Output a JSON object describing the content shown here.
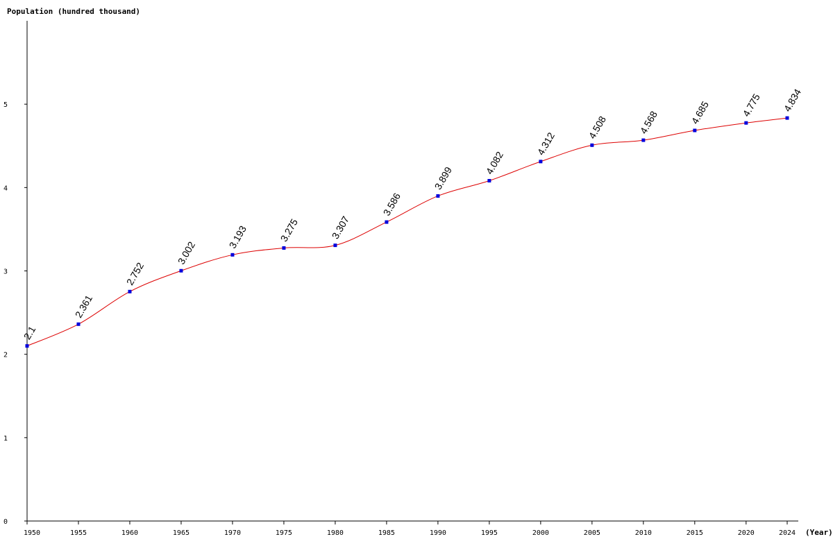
{
  "chart_data": {
    "type": "line",
    "title": "",
    "ylabel": "Population (hundred thousand)",
    "xlabel": "(Year)",
    "x": [
      1950,
      1955,
      1960,
      1965,
      1970,
      1975,
      1980,
      1985,
      1990,
      1995,
      2000,
      2005,
      2010,
      2015,
      2020,
      2024
    ],
    "x_tick_labels": [
      "1950",
      "1955",
      "1960",
      "1965",
      "1970",
      "1975",
      "1980",
      "1985",
      "1990",
      "1995",
      "2000",
      "2005",
      "2010",
      "2015",
      "2020",
      "2024"
    ],
    "y_tick_values": [
      0,
      1,
      2,
      3,
      4,
      5
    ],
    "y_tick_labels": [
      "0",
      "1",
      "2",
      "3",
      "4",
      "5"
    ],
    "ylim": [
      0,
      6
    ],
    "xlim": [
      1950,
      2024
    ],
    "grid": false,
    "legend": "none",
    "series": [
      {
        "values": [
          2.1,
          2.361,
          2.752,
          3.002,
          3.193,
          3.275,
          3.307,
          3.586,
          3.899,
          4.082,
          4.312,
          4.508,
          4.568,
          4.685,
          4.775,
          4.834
        ],
        "labels": [
          "2.1",
          "2.361",
          "2.752",
          "3.002",
          "3.193",
          "3.275",
          "3.307",
          "3.586",
          "3.899",
          "4.082",
          "4.312",
          "4.508",
          "4.568",
          "4.685",
          "4.775",
          "4.834"
        ],
        "line_color": "#dd0000",
        "marker_color": "#0000dd"
      }
    ]
  }
}
